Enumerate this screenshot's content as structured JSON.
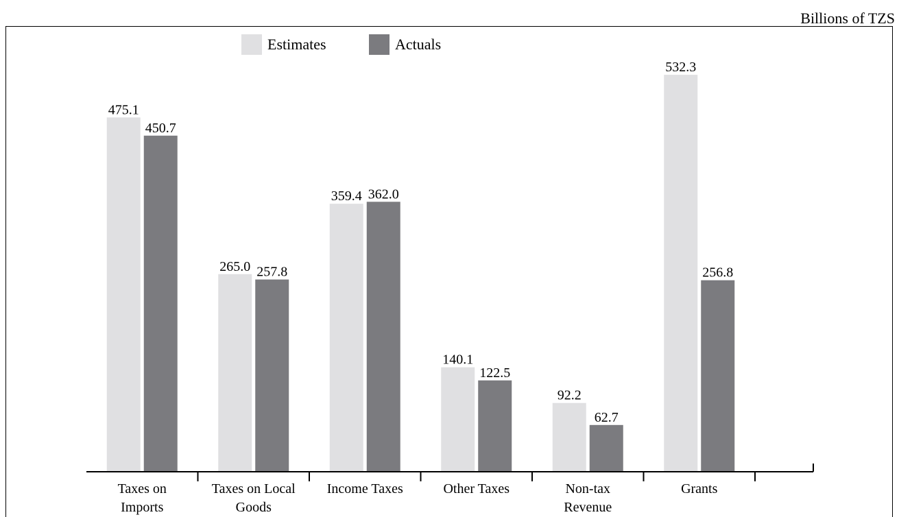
{
  "chart_data": {
    "type": "bar",
    "unit_label": "Billions of TZS",
    "categories": [
      [
        "Taxes on",
        "Imports"
      ],
      [
        "Taxes on Local",
        "Goods"
      ],
      [
        "Income Taxes"
      ],
      [
        "Other Taxes"
      ],
      [
        "Non-tax",
        "Revenue"
      ],
      [
        "Grants"
      ]
    ],
    "series": [
      {
        "name": "Estimates",
        "color": "#e0e0e2",
        "values": [
          475.1,
          265.0,
          359.4,
          140.1,
          92.2,
          532.3
        ]
      },
      {
        "name": "Actuals",
        "color": "#7b7b7f",
        "values": [
          450.7,
          257.8,
          362.0,
          122.5,
          62.7,
          256.8
        ]
      }
    ],
    "ylim": [
      0,
      600
    ],
    "grid": false,
    "legend_position": "top-left",
    "value_format": "1 decimal"
  }
}
